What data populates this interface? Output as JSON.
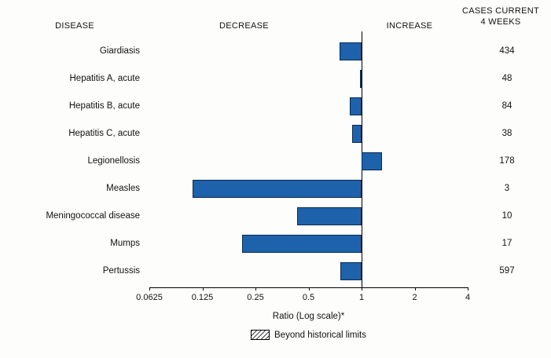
{
  "colors": {
    "bar_fill": "#1e62ab",
    "bar_border": "#0a2c50",
    "axis": "#000000",
    "text": "#111111",
    "background": "#fdfdfb"
  },
  "header": {
    "disease": "DISEASE",
    "decrease": "DECREASE",
    "increase": "INCREASE",
    "cases_line1": "CASES CURRENT",
    "cases_line2": "4 WEEKS"
  },
  "chart_data": {
    "type": "bar",
    "orientation": "horizontal",
    "scale": "log",
    "baseline": 1,
    "xlim": [
      0.0625,
      4
    ],
    "x_ticks": [
      0.0625,
      0.125,
      0.25,
      0.5,
      1,
      2,
      4
    ],
    "x_tick_labels": [
      "0.0625",
      "0.125",
      "0.25",
      "0.5",
      "1",
      "2",
      "4"
    ],
    "xlabel": "Ratio (Log scale)*",
    "legend": "Beyond historical limits",
    "legend_position": "bottom-center",
    "grid": false,
    "rows": [
      {
        "disease": "Giardiasis",
        "ratio": 0.75,
        "cases": 434,
        "beyond_limits": false
      },
      {
        "disease": "Hepatitis A, acute",
        "ratio": 0.98,
        "cases": 48,
        "beyond_limits": false
      },
      {
        "disease": "Hepatitis B, acute",
        "ratio": 0.86,
        "cases": 84,
        "beyond_limits": false
      },
      {
        "disease": "Hepatitis C, acute",
        "ratio": 0.88,
        "cases": 38,
        "beyond_limits": false
      },
      {
        "disease": "Legionellosis",
        "ratio": 1.3,
        "cases": 178,
        "beyond_limits": false
      },
      {
        "disease": "Measles",
        "ratio": 0.11,
        "cases": 3,
        "beyond_limits": false
      },
      {
        "disease": "Meningococcal disease",
        "ratio": 0.43,
        "cases": 10,
        "beyond_limits": false
      },
      {
        "disease": "Mumps",
        "ratio": 0.21,
        "cases": 17,
        "beyond_limits": false
      },
      {
        "disease": "Pertussis",
        "ratio": 0.76,
        "cases": 597,
        "beyond_limits": false
      }
    ]
  }
}
